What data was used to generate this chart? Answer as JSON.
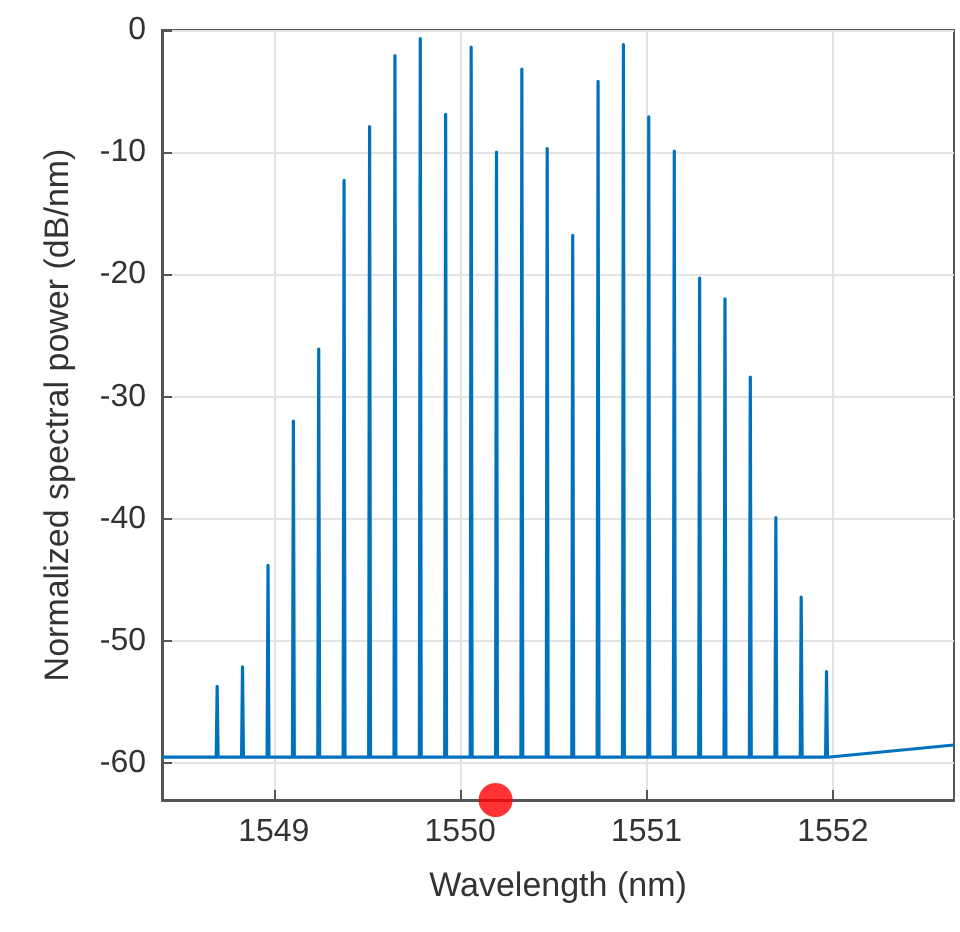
{
  "chart_data": {
    "type": "line",
    "xlabel": "Wavelength (nm)",
    "ylabel": "Normalized spectral power (dB/nm)",
    "xlim": [
      1548.4,
      1552.65
    ],
    "ylim": [
      -63,
      0
    ],
    "xticks": [
      1549,
      1550,
      1551,
      1552
    ],
    "yticks": [
      -60,
      -50,
      -40,
      -30,
      -20,
      -10,
      0
    ],
    "grid": true,
    "series": [
      {
        "color": "#0072bd",
        "marker": "none",
        "line_style": "solid",
        "x": [
          1548.4,
          1548.691,
          1548.696,
          1548.701,
          1548.827,
          1548.832,
          1548.837,
          1548.964,
          1548.969,
          1548.974,
          1549.1,
          1549.105,
          1549.11,
          1549.236,
          1549.241,
          1549.246,
          1549.372,
          1549.377,
          1549.382,
          1549.509,
          1549.514,
          1549.519,
          1549.645,
          1549.65,
          1549.655,
          1549.781,
          1549.786,
          1549.791,
          1549.917,
          1549.922,
          1549.927,
          1550.054,
          1550.059,
          1550.064,
          1550.19,
          1550.195,
          1550.2,
          1550.326,
          1550.331,
          1550.336,
          1550.462,
          1550.467,
          1550.472,
          1550.599,
          1550.604,
          1550.609,
          1550.735,
          1550.74,
          1550.745,
          1550.871,
          1550.876,
          1550.881,
          1551.007,
          1551.012,
          1551.017,
          1551.144,
          1551.149,
          1551.154,
          1551.28,
          1551.285,
          1551.29,
          1551.416,
          1551.421,
          1551.426,
          1551.552,
          1551.557,
          1551.562,
          1551.689,
          1551.694,
          1551.699,
          1551.825,
          1551.83,
          1551.835,
          1551.961,
          1551.966,
          1551.971,
          1552.65
        ],
        "values": [
          -59.5,
          -59.5,
          -53.7,
          -59.5,
          -59.5,
          -52.1,
          -59.5,
          -59.5,
          -43.8,
          -59.5,
          -59.5,
          -32.0,
          -59.5,
          -59.5,
          -26.1,
          -59.5,
          -59.5,
          -12.3,
          -59.5,
          -59.5,
          -7.9,
          -59.5,
          -59.5,
          -2.1,
          -59.5,
          -59.5,
          -0.7,
          -59.5,
          -59.5,
          -6.9,
          -59.5,
          -59.5,
          -1.4,
          -59.5,
          -59.5,
          -10.0,
          -59.5,
          -59.5,
          -3.2,
          -59.5,
          -59.5,
          -9.7,
          -59.5,
          -59.5,
          -16.8,
          -59.5,
          -59.5,
          -4.2,
          -59.5,
          -59.5,
          -1.2,
          -59.5,
          -59.5,
          -7.1,
          -59.5,
          -59.5,
          -9.9,
          -59.5,
          -59.5,
          -20.3,
          -59.5,
          -59.5,
          -22.0,
          -59.5,
          -59.5,
          -28.4,
          -59.5,
          -59.5,
          -39.9,
          -59.5,
          -59.5,
          -46.4,
          -59.5,
          -59.5,
          -52.5,
          -59.5,
          -58.5
        ]
      },
      {
        "type": "scatter",
        "color": "#ff0000",
        "marker": "circle",
        "x": [
          1550.19
        ],
        "values": [
          -63
        ]
      }
    ]
  }
}
